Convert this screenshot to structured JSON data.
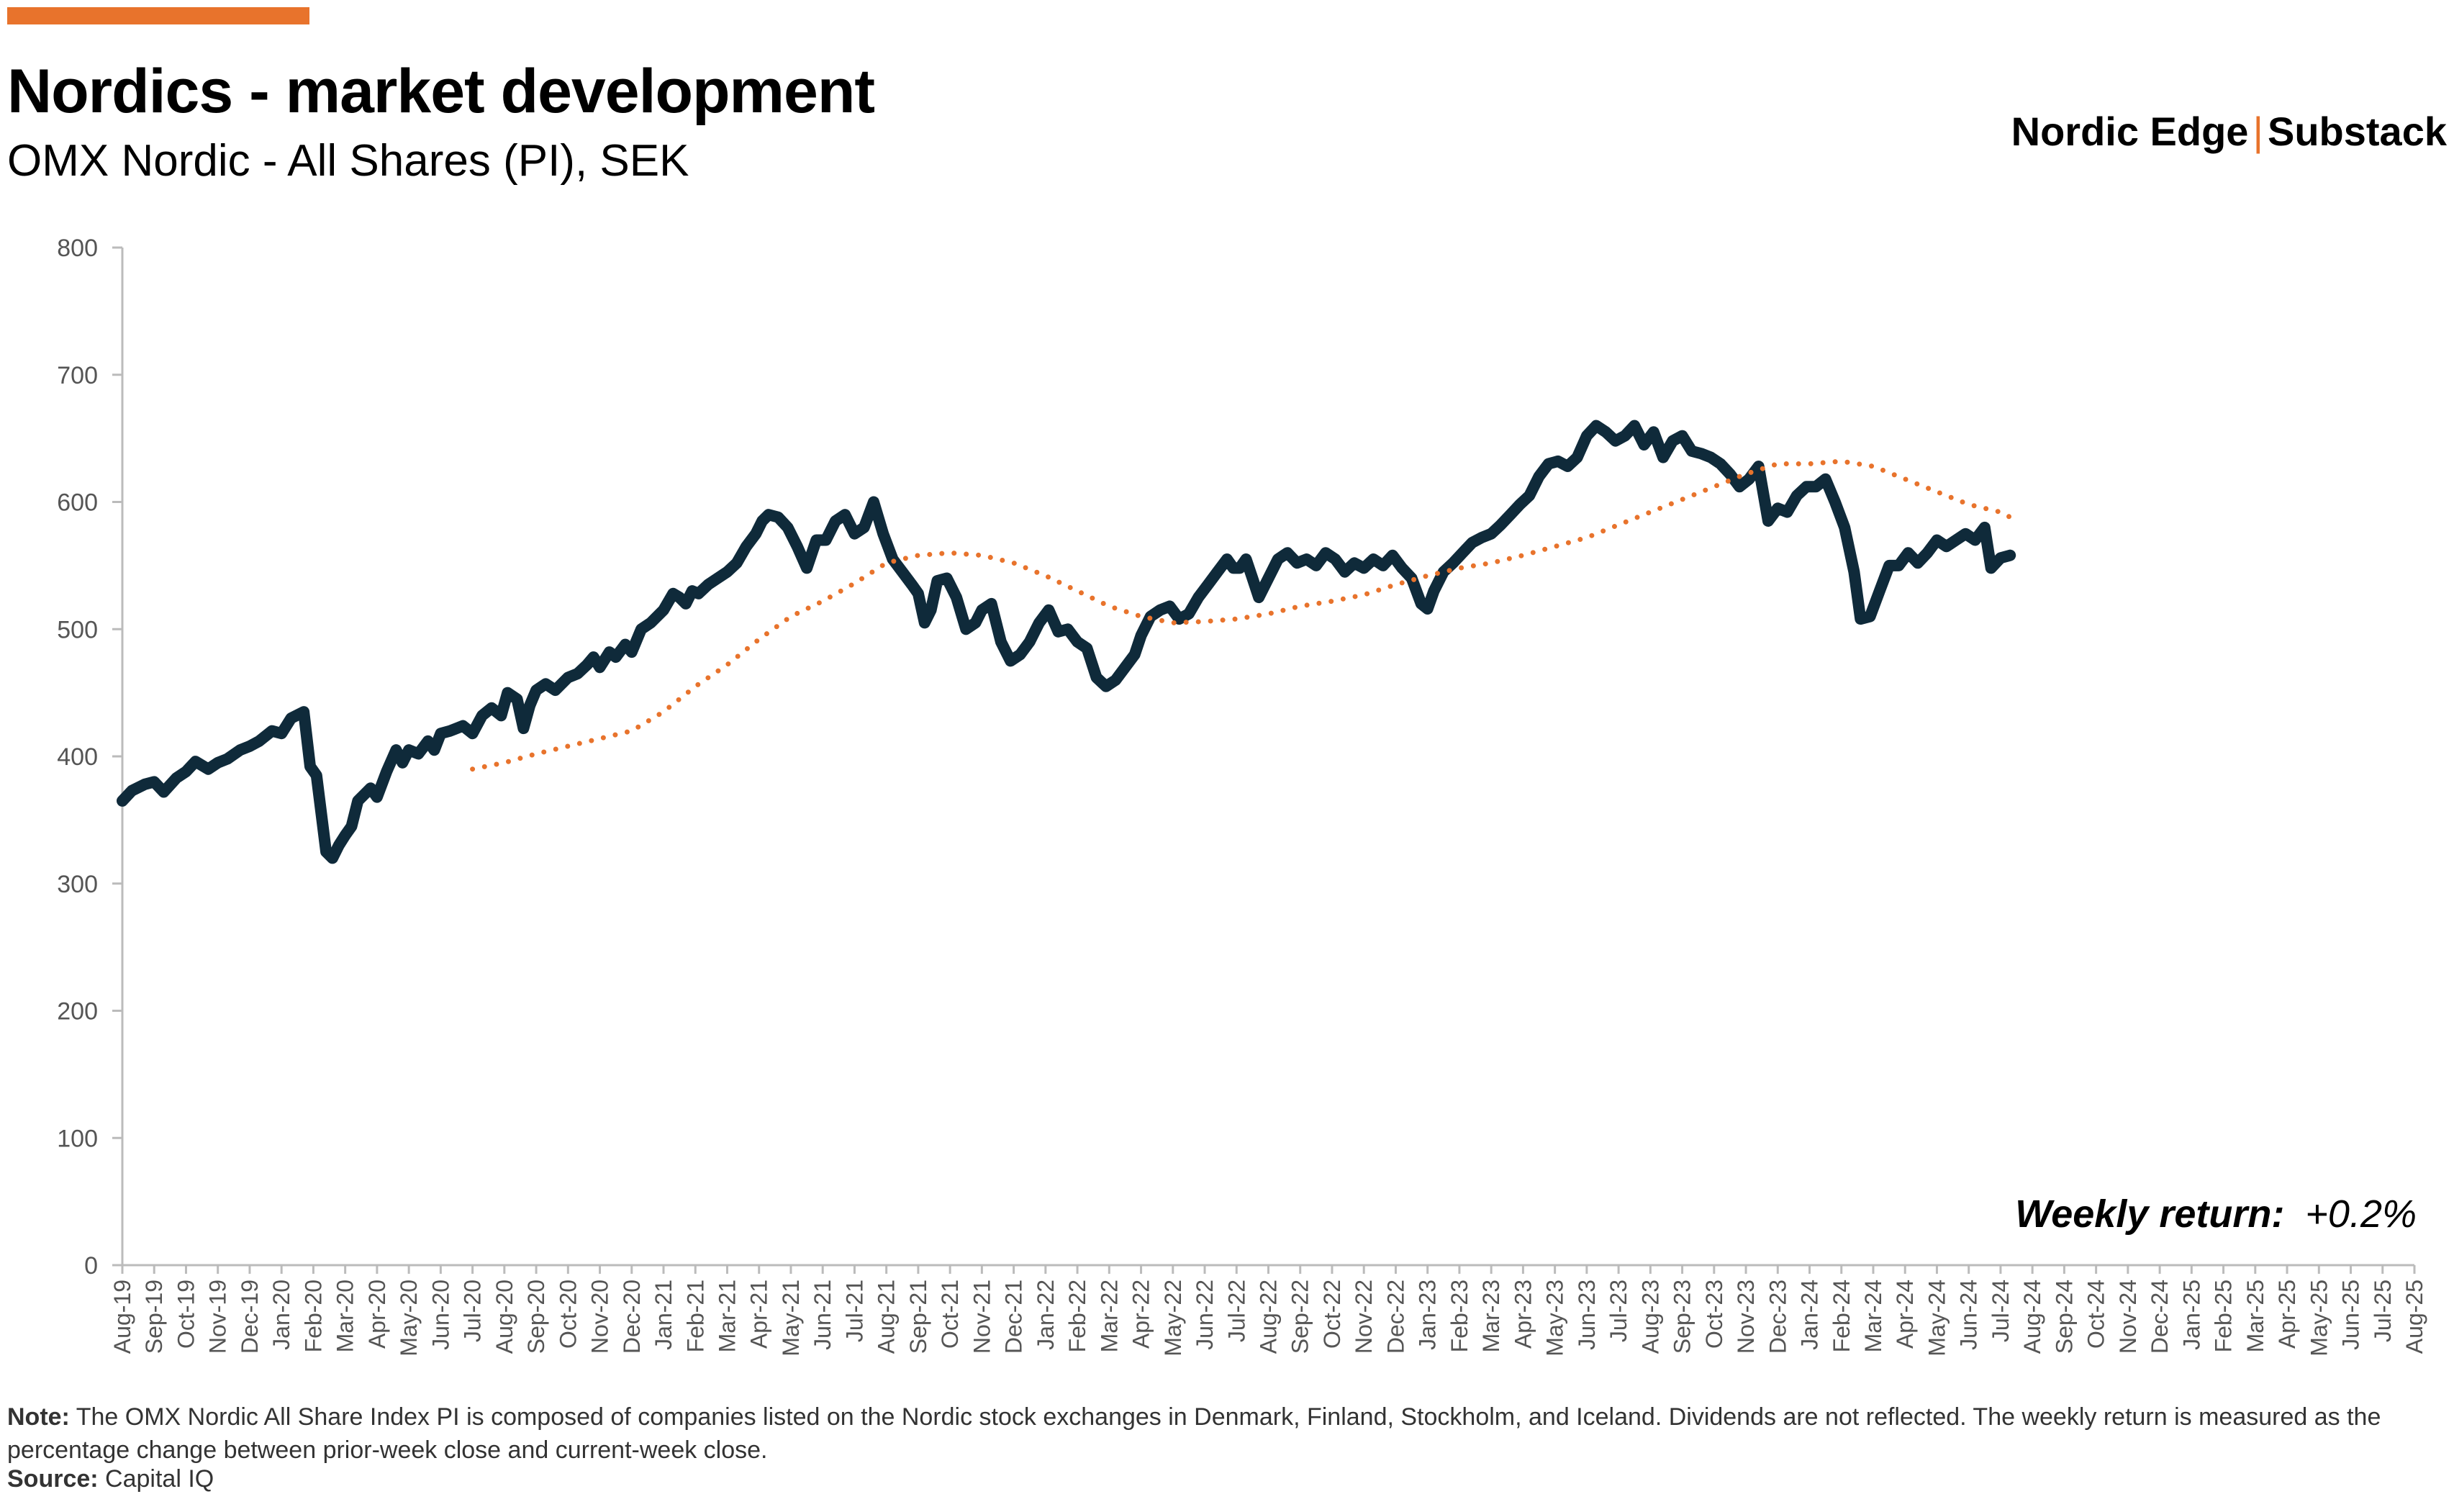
{
  "header": {
    "title": "Nordics - market development",
    "subtitle": "OMX Nordic - All Shares (PI), SEK",
    "brand_left": "Nordic Edge",
    "brand_sep": "|",
    "brand_right": "Substack"
  },
  "annotation": {
    "label": "Weekly return:",
    "value": "+0.2%"
  },
  "footer": {
    "note_label": "Note:",
    "note_text": "The OMX Nordic All Share Index PI is composed of companies listed on the Nordic stock exchanges in Denmark, Finland, Stockholm, and Iceland. Dividends are not reflected. The weekly return is measured as the percentage change between prior-week close and current-week close.",
    "source_label": "Source:",
    "source_text": "Capital IQ"
  },
  "colors": {
    "accent": "#E8732C",
    "index_line": "#0F2A3A",
    "axis": "#BBBBBB",
    "tick_text": "#555555"
  },
  "chart_data": {
    "type": "line",
    "ylim": [
      0,
      800
    ],
    "yticks": [
      0,
      100,
      200,
      300,
      400,
      500,
      600,
      700,
      800
    ],
    "grid": false,
    "x_labels": [
      "Aug-19",
      "Sep-19",
      "Oct-19",
      "Nov-19",
      "Dec-19",
      "Jan-20",
      "Feb-20",
      "Mar-20",
      "Apr-20",
      "May-20",
      "Jun-20",
      "Jul-20",
      "Aug-20",
      "Sep-20",
      "Oct-20",
      "Nov-20",
      "Dec-20",
      "Jan-21",
      "Feb-21",
      "Mar-21",
      "Apr-21",
      "May-21",
      "Jun-21",
      "Jul-21",
      "Aug-21",
      "Sep-21",
      "Oct-21",
      "Nov-21",
      "Dec-21",
      "Jan-22",
      "Feb-22",
      "Mar-22",
      "Apr-22",
      "May-22",
      "Jun-22",
      "Jul-22",
      "Aug-22",
      "Sep-22",
      "Oct-22",
      "Nov-22",
      "Dec-22",
      "Jan-23",
      "Feb-23",
      "Mar-23",
      "Apr-23",
      "May-23",
      "Jun-23",
      "Jul-23",
      "Aug-23",
      "Sep-23",
      "Oct-23",
      "Nov-23",
      "Dec-23",
      "Jan-24",
      "Feb-24",
      "Mar-24",
      "Apr-24",
      "May-24",
      "Jun-24",
      "Jul-24",
      "Aug-24",
      "Sep-24",
      "Oct-24",
      "Nov-24",
      "Dec-24",
      "Jan-25",
      "Feb-25",
      "Mar-25",
      "Apr-25",
      "May-25",
      "Jun-25",
      "Jul-25",
      "Aug-25"
    ],
    "series": [
      {
        "style": "solid",
        "values": [
          [
            0,
            365
          ],
          [
            0.3,
            373
          ],
          [
            0.7,
            378
          ],
          [
            1,
            380
          ],
          [
            1.3,
            372
          ],
          [
            1.7,
            383
          ],
          [
            2,
            388
          ],
          [
            2.3,
            396
          ],
          [
            2.7,
            390
          ],
          [
            3,
            395
          ],
          [
            3.3,
            398
          ],
          [
            3.7,
            405
          ],
          [
            4,
            408
          ],
          [
            4.3,
            412
          ],
          [
            4.7,
            420
          ],
          [
            5,
            418
          ],
          [
            5.3,
            430
          ],
          [
            5.7,
            435
          ],
          [
            5.9,
            392
          ],
          [
            6.1,
            385
          ],
          [
            6.4,
            325
          ],
          [
            6.6,
            320
          ],
          [
            6.8,
            330
          ],
          [
            7,
            338
          ],
          [
            7.2,
            345
          ],
          [
            7.4,
            365
          ],
          [
            7.6,
            370
          ],
          [
            7.8,
            375
          ],
          [
            8,
            368
          ],
          [
            8.3,
            388
          ],
          [
            8.6,
            405
          ],
          [
            8.8,
            395
          ],
          [
            9,
            405
          ],
          [
            9.3,
            402
          ],
          [
            9.6,
            412
          ],
          [
            9.8,
            405
          ],
          [
            10,
            418
          ],
          [
            10.3,
            420
          ],
          [
            10.7,
            424
          ],
          [
            11,
            418
          ],
          [
            11.3,
            432
          ],
          [
            11.6,
            438
          ],
          [
            11.9,
            432
          ],
          [
            12.1,
            450
          ],
          [
            12.4,
            445
          ],
          [
            12.6,
            422
          ],
          [
            12.8,
            440
          ],
          [
            13,
            452
          ],
          [
            13.3,
            457
          ],
          [
            13.6,
            452
          ],
          [
            14,
            462
          ],
          [
            14.3,
            465
          ],
          [
            14.6,
            472
          ],
          [
            14.8,
            478
          ],
          [
            15,
            470
          ],
          [
            15.3,
            482
          ],
          [
            15.5,
            478
          ],
          [
            15.8,
            488
          ],
          [
            16,
            482
          ],
          [
            16.3,
            500
          ],
          [
            16.6,
            505
          ],
          [
            17,
            515
          ],
          [
            17.3,
            528
          ],
          [
            17.5,
            525
          ],
          [
            17.7,
            520
          ],
          [
            17.9,
            530
          ],
          [
            18.1,
            528
          ],
          [
            18.4,
            535
          ],
          [
            18.7,
            540
          ],
          [
            19,
            545
          ],
          [
            19.3,
            552
          ],
          [
            19.6,
            565
          ],
          [
            19.9,
            575
          ],
          [
            20.1,
            585
          ],
          [
            20.3,
            590
          ],
          [
            20.6,
            588
          ],
          [
            20.9,
            580
          ],
          [
            21.2,
            565
          ],
          [
            21.5,
            548
          ],
          [
            21.8,
            570
          ],
          [
            22.1,
            570
          ],
          [
            22.4,
            585
          ],
          [
            22.7,
            590
          ],
          [
            23,
            575
          ],
          [
            23.3,
            580
          ],
          [
            23.6,
            600
          ],
          [
            23.9,
            575
          ],
          [
            24.2,
            555
          ],
          [
            24.5,
            545
          ],
          [
            24.8,
            535
          ],
          [
            25,
            528
          ],
          [
            25.2,
            505
          ],
          [
            25.4,
            515
          ],
          [
            25.6,
            538
          ],
          [
            25.9,
            540
          ],
          [
            26.2,
            525
          ],
          [
            26.5,
            500
          ],
          [
            26.8,
            505
          ],
          [
            27,
            515
          ],
          [
            27.3,
            520
          ],
          [
            27.6,
            490
          ],
          [
            27.9,
            475
          ],
          [
            28.2,
            480
          ],
          [
            28.5,
            490
          ],
          [
            28.8,
            505
          ],
          [
            29.1,
            515
          ],
          [
            29.4,
            498
          ],
          [
            29.7,
            500
          ],
          [
            30,
            490
          ],
          [
            30.3,
            485
          ],
          [
            30.6,
            462
          ],
          [
            30.9,
            455
          ],
          [
            31.2,
            460
          ],
          [
            31.5,
            470
          ],
          [
            31.8,
            480
          ],
          [
            32,
            495
          ],
          [
            32.3,
            510
          ],
          [
            32.6,
            515
          ],
          [
            32.9,
            518
          ],
          [
            33.2,
            508
          ],
          [
            33.5,
            512
          ],
          [
            33.8,
            525
          ],
          [
            34.1,
            535
          ],
          [
            34.4,
            545
          ],
          [
            34.7,
            555
          ],
          [
            34.9,
            548
          ],
          [
            35.1,
            548
          ],
          [
            35.3,
            555
          ],
          [
            35.5,
            540
          ],
          [
            35.7,
            525
          ],
          [
            36,
            540
          ],
          [
            36.3,
            555
          ],
          [
            36.6,
            560
          ],
          [
            36.9,
            552
          ],
          [
            37.2,
            555
          ],
          [
            37.5,
            550
          ],
          [
            37.8,
            560
          ],
          [
            38.1,
            555
          ],
          [
            38.4,
            545
          ],
          [
            38.7,
            552
          ],
          [
            39,
            548
          ],
          [
            39.3,
            555
          ],
          [
            39.6,
            550
          ],
          [
            39.9,
            558
          ],
          [
            40.2,
            548
          ],
          [
            40.5,
            540
          ],
          [
            40.8,
            520
          ],
          [
            41,
            516
          ],
          [
            41.2,
            530
          ],
          [
            41.5,
            545
          ],
          [
            41.8,
            552
          ],
          [
            42.1,
            560
          ],
          [
            42.4,
            568
          ],
          [
            42.7,
            572
          ],
          [
            43,
            575
          ],
          [
            43.3,
            582
          ],
          [
            43.6,
            590
          ],
          [
            43.9,
            598
          ],
          [
            44.2,
            605
          ],
          [
            44.5,
            620
          ],
          [
            44.8,
            630
          ],
          [
            45.1,
            632
          ],
          [
            45.4,
            628
          ],
          [
            45.7,
            635
          ],
          [
            46,
            652
          ],
          [
            46.3,
            660
          ],
          [
            46.6,
            655
          ],
          [
            46.9,
            648
          ],
          [
            47.2,
            652
          ],
          [
            47.5,
            660
          ],
          [
            47.8,
            645
          ],
          [
            48.1,
            655
          ],
          [
            48.4,
            635
          ],
          [
            48.7,
            648
          ],
          [
            49,
            652
          ],
          [
            49.3,
            640
          ],
          [
            49.6,
            638
          ],
          [
            49.9,
            635
          ],
          [
            50.2,
            630
          ],
          [
            50.5,
            622
          ],
          [
            50.8,
            612
          ],
          [
            51.1,
            618
          ],
          [
            51.4,
            628
          ],
          [
            51.7,
            585
          ],
          [
            52,
            595
          ],
          [
            52.3,
            592
          ],
          [
            52.6,
            605
          ],
          [
            52.9,
            612
          ],
          [
            53.2,
            612
          ],
          [
            53.5,
            618
          ],
          [
            53.8,
            600
          ],
          [
            54.1,
            580
          ],
          [
            54.4,
            545
          ],
          [
            54.6,
            508
          ],
          [
            54.9,
            510
          ],
          [
            55.2,
            530
          ],
          [
            55.5,
            550
          ],
          [
            55.8,
            550
          ],
          [
            56.1,
            560
          ],
          [
            56.4,
            552
          ],
          [
            56.7,
            560
          ],
          [
            57,
            570
          ],
          [
            57.3,
            565
          ],
          [
            57.6,
            570
          ],
          [
            57.9,
            575
          ],
          [
            58.2,
            570
          ],
          [
            58.5,
            580
          ],
          [
            58.7,
            548
          ],
          [
            59,
            556
          ],
          [
            59.3,
            558
          ]
        ]
      },
      {
        "style": "dotted",
        "values": [
          [
            11,
            390
          ],
          [
            12,
            395
          ],
          [
            13,
            402
          ],
          [
            14,
            408
          ],
          [
            15,
            414
          ],
          [
            16,
            420
          ],
          [
            17,
            435
          ],
          [
            18,
            455
          ],
          [
            19,
            472
          ],
          [
            20,
            492
          ],
          [
            21,
            510
          ],
          [
            22,
            522
          ],
          [
            23,
            536
          ],
          [
            24,
            552
          ],
          [
            25,
            558
          ],
          [
            26,
            560
          ],
          [
            27,
            558
          ],
          [
            28,
            552
          ],
          [
            29,
            542
          ],
          [
            30,
            530
          ],
          [
            31,
            518
          ],
          [
            32,
            510
          ],
          [
            33,
            505
          ],
          [
            34,
            506
          ],
          [
            35,
            508
          ],
          [
            36,
            512
          ],
          [
            37,
            518
          ],
          [
            38,
            522
          ],
          [
            39,
            527
          ],
          [
            40,
            535
          ],
          [
            41,
            542
          ],
          [
            42,
            548
          ],
          [
            43,
            552
          ],
          [
            44,
            558
          ],
          [
            45,
            565
          ],
          [
            46,
            572
          ],
          [
            47,
            582
          ],
          [
            48,
            592
          ],
          [
            49,
            602
          ],
          [
            50,
            612
          ],
          [
            51,
            622
          ],
          [
            52,
            630
          ],
          [
            53,
            630
          ],
          [
            54,
            632
          ],
          [
            55,
            628
          ],
          [
            56,
            618
          ],
          [
            57,
            608
          ],
          [
            58,
            598
          ],
          [
            59,
            592
          ],
          [
            59.3,
            588
          ]
        ]
      }
    ]
  }
}
